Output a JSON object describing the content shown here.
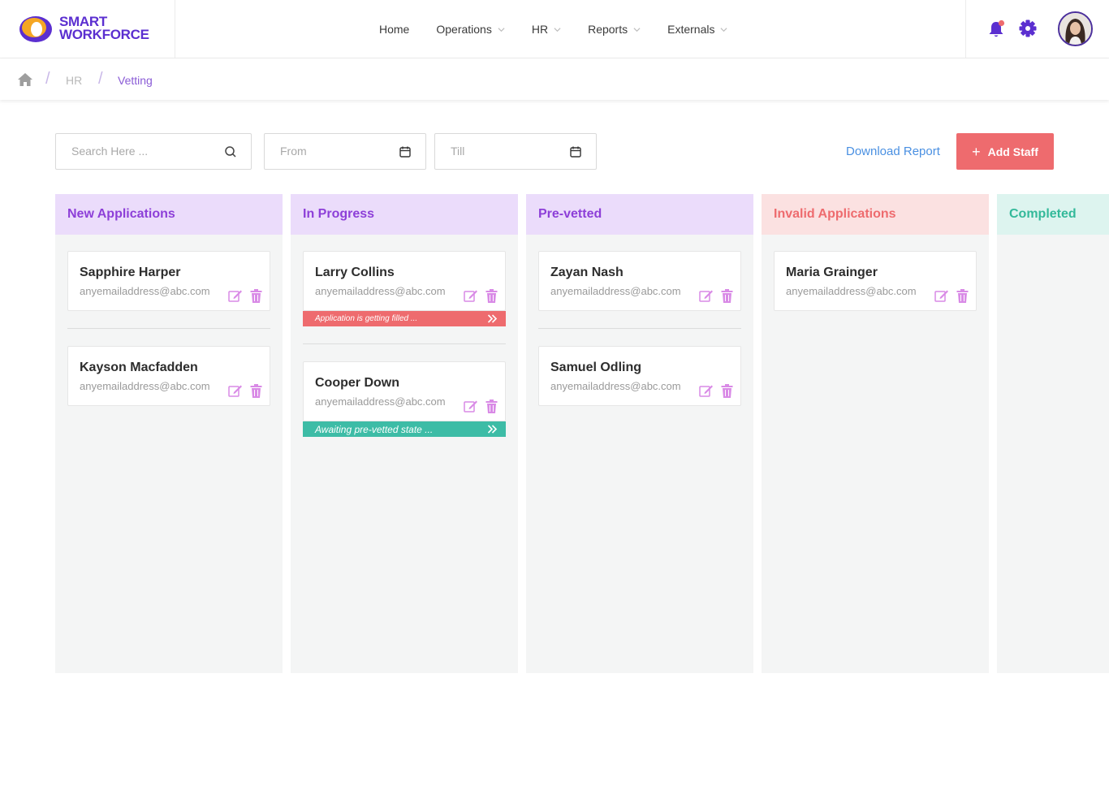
{
  "brand": {
    "line1": "SMART",
    "line2": "WORKFORCE"
  },
  "nav": [
    {
      "label": "Home",
      "dropdown": false
    },
    {
      "label": "Operations",
      "dropdown": true
    },
    {
      "label": "HR",
      "dropdown": true
    },
    {
      "label": "Reports",
      "dropdown": true
    },
    {
      "label": "Externals",
      "dropdown": true
    }
  ],
  "breadcrumb": {
    "section": "HR",
    "current": "Vetting",
    "separator": "/"
  },
  "toolbar": {
    "search_placeholder": "Search Here ...",
    "from_placeholder": "From",
    "till_placeholder": "Till",
    "download_label": "Download Report",
    "add_label": "Add Staff",
    "add_symbol": "+"
  },
  "columns": [
    {
      "title": "New Applications",
      "cards": [
        {
          "name": "Sapphire Harper",
          "email": "anyemailaddress@abc.com",
          "status": null
        },
        {
          "name": "Kayson Macfadden",
          "email": "anyemailaddress@abc.com",
          "status": null
        }
      ]
    },
    {
      "title": "In Progress",
      "cards": [
        {
          "name": "Larry Collins",
          "email": "anyemailaddress@abc.com",
          "status": "Application is getting filled ..."
        },
        {
          "name": "Cooper Down",
          "email": "anyemailaddress@abc.com",
          "status": "Awaiting pre-vetted state ..."
        }
      ]
    },
    {
      "title": "Pre-vetted",
      "cards": [
        {
          "name": "Zayan Nash",
          "email": "anyemailaddress@abc.com",
          "status": null
        },
        {
          "name": "Samuel Odling",
          "email": "anyemailaddress@abc.com",
          "status": null
        }
      ]
    },
    {
      "title": "Invalid Applications",
      "cards": [
        {
          "name": "Maria Grainger",
          "email": "anyemailaddress@abc.com",
          "status": null
        }
      ]
    },
    {
      "title": "Completed",
      "cards": []
    }
  ],
  "colors": {
    "brand": "#5b2fd0",
    "accent_purple": "#8d3fd8",
    "add_button": "#ee6b6e",
    "link": "#4a90e2",
    "status_red": "#ee6b6e",
    "status_teal": "#3dbca6",
    "action_icons": "#d98ae6"
  },
  "icons": {
    "logo": "logo-mark-icon",
    "notifications": "bell-icon",
    "settings": "gear-icon",
    "home": "home-icon",
    "search": "search-icon",
    "calendar": "calendar-icon",
    "edit": "edit-icon",
    "delete": "trash-icon",
    "advance": "double-chevron-right-icon"
  }
}
